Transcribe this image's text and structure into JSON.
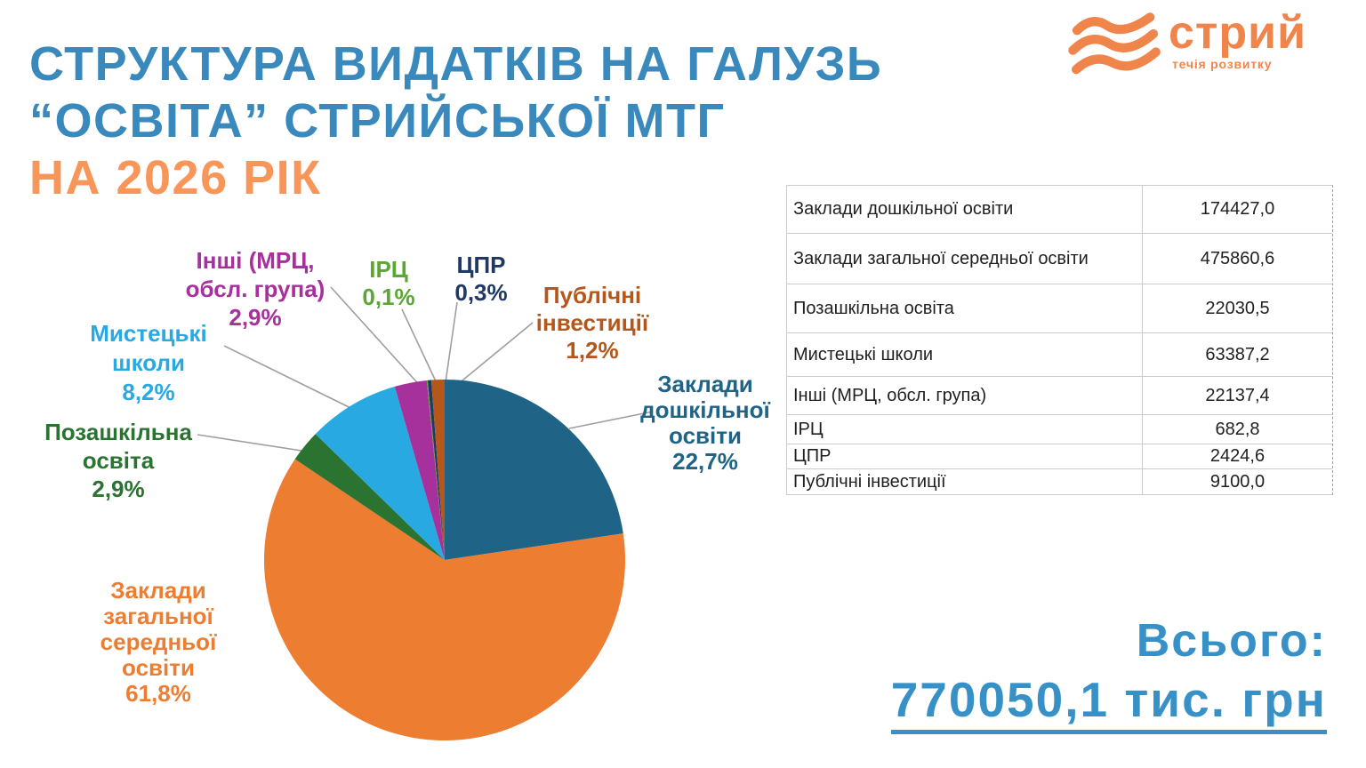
{
  "header": {
    "title_line1": "СТРУКТУРА ВИДАТКІВ НА ГАЛУЗЬ",
    "title_line2": "“ОСВІТА” СТРИЙСЬКОЇ МТГ",
    "title_line3": "НА 2026 РІК",
    "title_color": "#3A89BC",
    "subtitle_color": "#F8965A"
  },
  "logo": {
    "name": "стрий",
    "tagline": "течія розвитку",
    "color": "#F0854C"
  },
  "chart_data": {
    "type": "pie",
    "title": "Структура видатків на галузь “Освіта” Стрийської МТГ на 2026 рік",
    "unit": "тис. грн",
    "legend_position": "callout-labels",
    "total": {
      "label": "Всього:",
      "value": 770050.1,
      "value_text": "770050,1 тис. грн",
      "color": "#3791C7"
    },
    "slices": [
      {
        "name": "Заклади дошкільної освіти",
        "value": 174427.0,
        "pct": "22,7%",
        "color": "#1F6386",
        "label_lines": [
          "Заклади",
          "дошкільної",
          "освіти",
          "22,7%"
        ]
      },
      {
        "name": "Заклади загальної середньої освіти",
        "value": 475860.6,
        "pct": "61,8%",
        "color": "#ED7D31",
        "label_lines": [
          "Заклади",
          "загальної",
          "середньої",
          "освіти",
          "61,8%"
        ]
      },
      {
        "name": "Позашкільна освіта",
        "value": 22030.5,
        "pct": "2,9%",
        "color": "#2A7330",
        "label_lines": [
          "Позашкільна",
          "освіта",
          "2,9%"
        ]
      },
      {
        "name": "Мистецькі школи",
        "value": 63387.2,
        "pct": "8,2%",
        "color": "#29A9E1",
        "label_lines": [
          "Мистецькі",
          "школи",
          "8,2%"
        ]
      },
      {
        "name": "Інші (МРЦ, обсл. група)",
        "value": 22137.4,
        "pct": "2,9%",
        "color": "#A6309C",
        "label_lines": [
          "Інші (МРЦ,",
          "обсл. група)",
          "2,9%"
        ]
      },
      {
        "name": "ІРЦ",
        "value": 682.8,
        "pct": "0,1%",
        "color": "#5BA733",
        "label_lines": [
          "ІРЦ",
          "0,1%"
        ]
      },
      {
        "name": "ЦПР",
        "value": 2424.6,
        "pct": "0,3%",
        "color": "#1F3864",
        "label_lines": [
          "ЦПР",
          "0,3%"
        ]
      },
      {
        "name": "Публічні інвестиції",
        "value": 9100.0,
        "pct": "1,2%",
        "color": "#B5571B",
        "label_lines": [
          "Публічні",
          "інвестиції",
          "1,2%"
        ]
      }
    ],
    "leader_line_color": "#9E9E9E"
  },
  "table": {
    "rows": [
      {
        "label": "Заклади дошкільної освіти",
        "value": "174427,0"
      },
      {
        "label": "Заклади загальної середньої освіти",
        "value": "475860,6"
      },
      {
        "label": "Позашкільна освіта",
        "value": "22030,5"
      },
      {
        "label": "Мистецькі школи",
        "value": "63387,2"
      },
      {
        "label": "Інші (МРЦ, обсл. група)",
        "value": "22137,4"
      },
      {
        "label": "ІРЦ",
        "value": "682,8"
      },
      {
        "label": "ЦПР",
        "value": "2424,6"
      },
      {
        "label": "Публічні інвестиції",
        "value": "9100,0"
      }
    ]
  }
}
